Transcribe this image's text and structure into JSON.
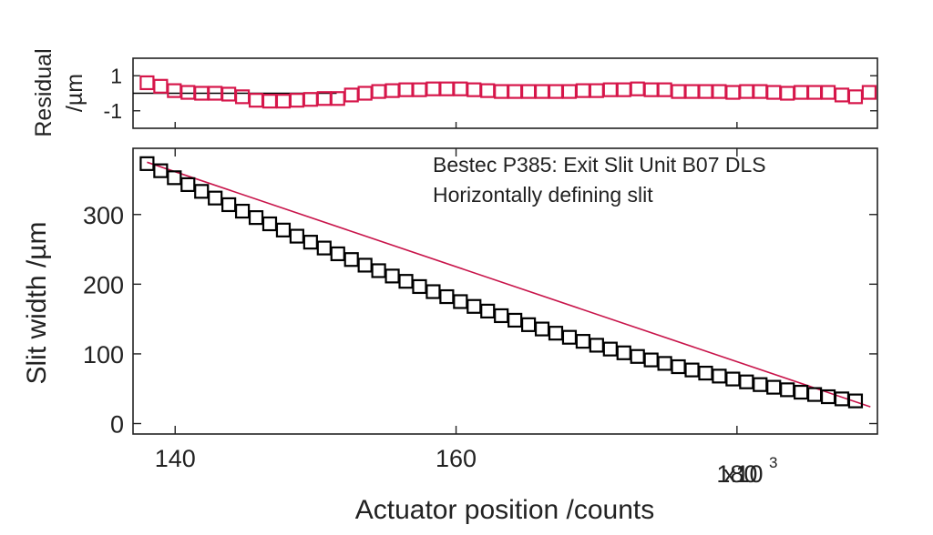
{
  "chart_data": [
    {
      "id": "residual",
      "type": "scatter",
      "ylabel_lines": [
        "Residual",
        "/µm"
      ],
      "xlim": [
        137,
        190
      ],
      "ylim": [
        -2,
        2
      ],
      "yticks": [
        1,
        -1
      ],
      "ytick_labels": [
        "1",
        "-1"
      ],
      "colors": {
        "markers": "#d6164a",
        "zero_line": "#000000"
      },
      "series": [
        {
          "x": [
            138.0,
            138.97,
            139.94,
            140.91,
            141.88,
            142.85,
            143.82,
            144.79,
            145.76,
            146.73,
            147.7,
            148.67,
            149.64,
            150.61,
            151.58,
            152.55,
            153.52,
            154.49,
            155.46,
            156.43,
            157.4,
            158.37,
            159.34,
            160.31,
            161.28,
            162.25,
            163.22,
            164.19,
            165.16,
            166.13,
            167.1,
            168.07,
            169.04,
            170.01,
            170.98,
            171.95,
            172.92,
            173.89,
            174.86,
            175.83,
            176.8,
            177.77,
            178.74,
            179.71,
            180.68,
            181.65,
            182.62,
            183.59,
            184.56,
            185.53,
            186.5,
            187.47,
            188.44,
            189.41
          ],
          "values": [
            0.6,
            0.4,
            0.15,
            0.05,
            0.0,
            0.0,
            -0.05,
            -0.2,
            -0.4,
            -0.45,
            -0.45,
            -0.4,
            -0.35,
            -0.3,
            -0.3,
            -0.1,
            0.0,
            0.1,
            0.15,
            0.2,
            0.2,
            0.25,
            0.25,
            0.25,
            0.2,
            0.15,
            0.1,
            0.1,
            0.1,
            0.1,
            0.1,
            0.1,
            0.15,
            0.15,
            0.2,
            0.2,
            0.25,
            0.2,
            0.2,
            0.1,
            0.1,
            0.1,
            0.1,
            0.05,
            0.1,
            0.1,
            0.05,
            0.0,
            0.05,
            0.05,
            0.05,
            -0.1,
            -0.2,
            0.05
          ]
        }
      ]
    },
    {
      "id": "main",
      "type": "scatter",
      "xlabel": "Actuator position /counts",
      "ylabel": "Slit width /µm",
      "xlim": [
        137,
        190
      ],
      "ylim": [
        -15,
        395
      ],
      "xticks": [
        140,
        160,
        180
      ],
      "xtick_labels": [
        "140",
        "160",
        "180"
      ],
      "x_multiplier_label": "x10",
      "x_multiplier_exponent": "3",
      "yticks": [
        0,
        100,
        200,
        300
      ],
      "ytick_labels": [
        "0",
        "100",
        "200",
        "300"
      ],
      "annotation": [
        "Bestec P385: Exit Slit Unit B07 DLS",
        "Horizontally defining slit"
      ],
      "colors": {
        "markers": "#000000",
        "fit_line": "#c8144a"
      },
      "series": [
        {
          "x": [
            138.0,
            138.97,
            139.94,
            140.91,
            141.88,
            142.85,
            143.82,
            144.79,
            145.76,
            146.73,
            147.7,
            148.67,
            149.64,
            150.61,
            151.58,
            152.55,
            153.52,
            154.49,
            155.46,
            156.43,
            157.4,
            158.37,
            159.34,
            160.31,
            161.28,
            162.25,
            163.22,
            164.19,
            165.16,
            166.13,
            167.1,
            168.07,
            169.04,
            170.01,
            170.98,
            171.95,
            172.92,
            173.89,
            174.86,
            175.83,
            176.8,
            177.77,
            178.74,
            179.71,
            180.68,
            181.65,
            182.62,
            183.59,
            184.56,
            185.53,
            186.5,
            187.47,
            188.44
          ],
          "values": [
            373.0,
            362.8,
            352.8,
            342.9,
            333.2,
            323.6,
            314.1,
            304.8,
            295.6,
            286.6,
            277.7,
            268.9,
            260.3,
            251.9,
            243.6,
            235.4,
            227.3,
            219.4,
            211.7,
            204.1,
            196.6,
            189.3,
            182.1,
            175.0,
            168.1,
            161.4,
            154.8,
            148.3,
            141.9,
            135.7,
            129.7,
            123.8,
            118.0,
            112.4,
            106.9,
            101.5,
            96.3,
            91.3,
            86.3,
            81.6,
            76.9,
            72.4,
            68.1,
            63.9,
            59.8,
            55.9,
            52.1,
            48.5,
            45.0,
            41.7,
            38.5,
            35.4,
            32.5
          ]
        }
      ],
      "fit": {
        "x_start": 138.0,
        "x_end": 189.5,
        "y_start": 375.0,
        "y_end": 24.0
      }
    }
  ]
}
